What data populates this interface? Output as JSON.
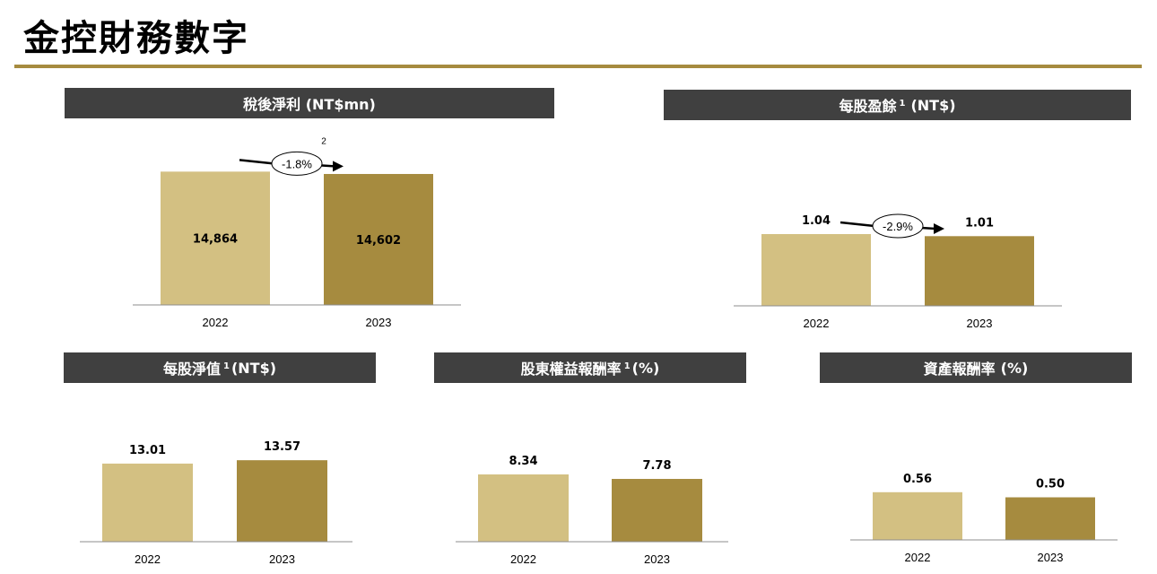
{
  "page": {
    "title": "金控財務數字"
  },
  "colors": {
    "bar_2022": "#d3c082",
    "bar_2023": "#a68b3f",
    "header_bg": "#404040",
    "rule": "#a68b3f",
    "axis": "#8c8c8c"
  },
  "chart_data": [
    {
      "type": "bar",
      "title": "稅後淨利 (NT$mn)",
      "title_main": "稅後淨利 (NT$mn)",
      "title_sup": "",
      "categories": [
        "2022",
        "2023"
      ],
      "values": [
        14864,
        14602
      ],
      "value_labels": [
        "14,864",
        "14,602"
      ],
      "label_position": "inside",
      "change": "-1.8%",
      "footnote_mark": "2",
      "ylim": [
        0,
        16000
      ]
    },
    {
      "type": "bar",
      "title": "每股盈餘 1 (NT$)",
      "title_main": "每股盈餘",
      "title_sup": "1",
      "title_unit": "(NT$)",
      "categories": [
        "2022",
        "2023"
      ],
      "values": [
        1.04,
        1.01
      ],
      "value_labels": [
        "1.04",
        "1.01"
      ],
      "label_position": "above",
      "change": "-2.9%",
      "footnote_mark": "",
      "ylim": [
        0,
        2.6
      ]
    },
    {
      "type": "bar",
      "title": "每股淨值 1 (NT$)",
      "title_main": "每股淨值",
      "title_sup": "1",
      "title_unit": "(NT$)",
      "categories": [
        "2022",
        "2023"
      ],
      "values": [
        13.01,
        13.57
      ],
      "value_labels": [
        "13.01",
        "13.57"
      ],
      "label_position": "above",
      "change": "",
      "footnote_mark": "",
      "ylim": [
        0,
        23
      ]
    },
    {
      "type": "bar",
      "title": "股東權益報酬率 1 (%)",
      "title_main": "股東權益報酬率",
      "title_sup": "1",
      "title_unit": "(%)",
      "categories": [
        "2022",
        "2023"
      ],
      "values": [
        8.34,
        7.78
      ],
      "value_labels": [
        "8.34",
        "7.78"
      ],
      "label_position": "above",
      "change": "",
      "footnote_mark": "",
      "ylim": [
        0,
        16
      ]
    },
    {
      "type": "bar",
      "title": "資產報酬率 (%)",
      "title_main": "資產報酬率",
      "title_sup": "",
      "title_unit": "(%)",
      "categories": [
        "2022",
        "2023"
      ],
      "values": [
        0.56,
        0.5
      ],
      "value_labels": [
        "0.56",
        "0.50"
      ],
      "label_position": "above",
      "change": "",
      "footnote_mark": "",
      "ylim": [
        0,
        1.6
      ]
    }
  ]
}
